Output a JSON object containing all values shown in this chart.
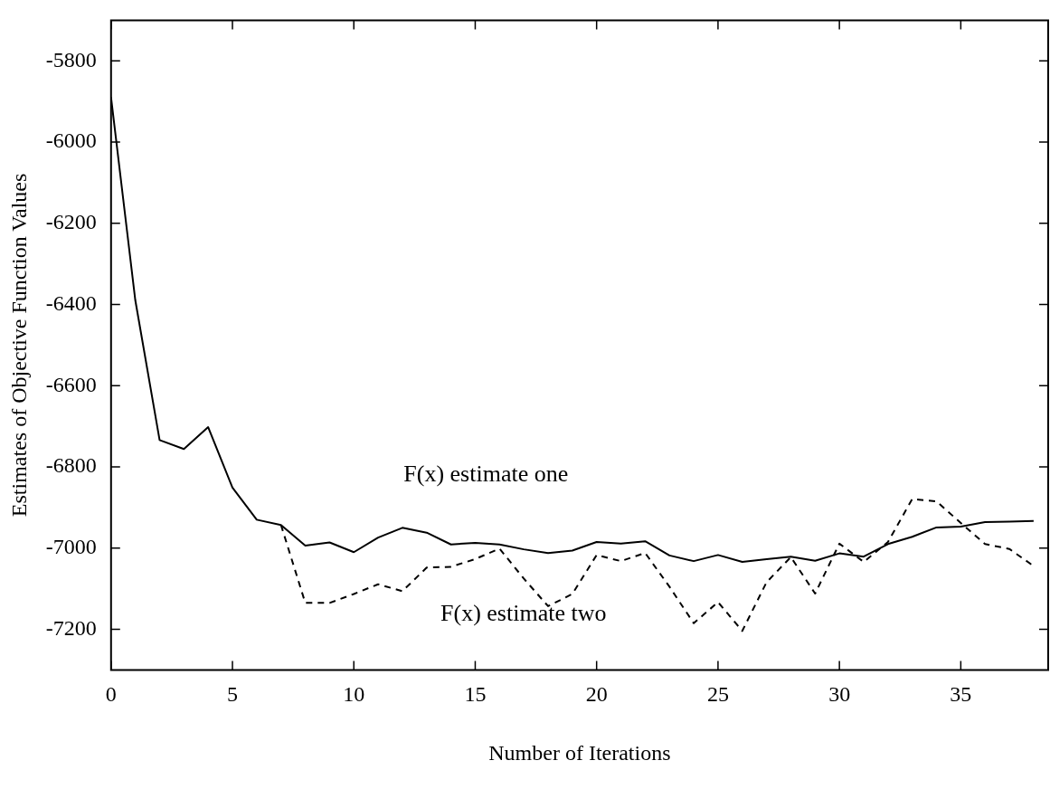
{
  "chart_data": {
    "type": "line",
    "xlabel": "Number of Iterations",
    "ylabel": "Estimates of Objective Function Values",
    "xlim": [
      0,
      38.6
    ],
    "xticks": [
      0,
      5,
      10,
      15,
      20,
      25,
      30,
      35
    ],
    "ylim": [
      -7300,
      -5700
    ],
    "yticks": [
      -7200,
      -7000,
      -6800,
      -6600,
      -6400,
      -6200,
      -6000,
      -5800
    ],
    "series": [
      {
        "name": "F(x) estimate one",
        "color": "#000000",
        "line_style": "solid",
        "x": [
          0,
          1,
          2,
          3,
          4,
          5,
          6,
          7,
          8,
          9,
          10,
          11,
          12,
          13,
          14,
          15,
          16,
          17,
          18,
          19,
          20,
          21,
          22,
          23,
          24,
          25,
          26,
          27,
          28,
          29,
          30,
          31,
          32,
          33,
          34,
          35,
          36,
          37,
          38
        ],
        "values": [
          -5890,
          -6390,
          -6734,
          -6756,
          -6702,
          -6851,
          -6930,
          -6943,
          -6994,
          -6986,
          -7010,
          -6974,
          -6950,
          -6962,
          -6991,
          -6987,
          -6991,
          -7003,
          -7012,
          -7006,
          -6985,
          -6989,
          -6983,
          -7018,
          -7032,
          -7017,
          -7034,
          -7027,
          -7021,
          -7031,
          -7013,
          -7021,
          -6990,
          -6972,
          -6949,
          -6947,
          -6936,
          -6935,
          -6933
        ]
      },
      {
        "name": "F(x) estimate two",
        "color": "#000000",
        "line_style": "dashed",
        "x": [
          7,
          8,
          9,
          10,
          11,
          12,
          13,
          14,
          15,
          16,
          17,
          18,
          19,
          20,
          21,
          22,
          23,
          24,
          25,
          26,
          27,
          28,
          29,
          30,
          31,
          32,
          33,
          34,
          35,
          36,
          37,
          38
        ],
        "values": [
          -6943,
          -7135,
          -7135,
          -7113,
          -7089,
          -7106,
          -7048,
          -7046,
          -7027,
          -7001,
          -7075,
          -7143,
          -7113,
          -7017,
          -7032,
          -7012,
          -7095,
          -7185,
          -7133,
          -7204,
          -7084,
          -7022,
          -7112,
          -6989,
          -7034,
          -6985,
          -6879,
          -6885,
          -6938,
          -6990,
          -7002,
          -7044
        ]
      }
    ],
    "marker": "none"
  }
}
